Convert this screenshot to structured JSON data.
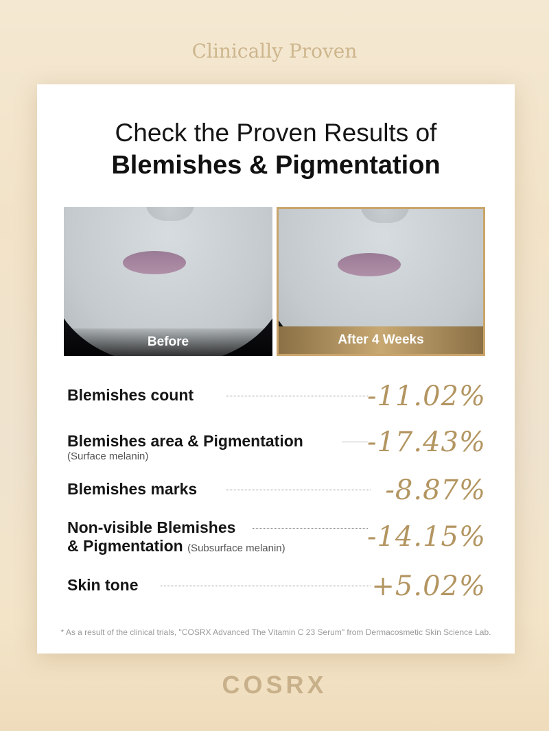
{
  "header": {
    "title": "Clinically Proven"
  },
  "card": {
    "heading_line1": "Check the Proven Results of",
    "heading_line2": "Blemishes & Pigmentation",
    "photos": [
      {
        "label": "Before"
      },
      {
        "label": "After 4 Weeks"
      }
    ],
    "stats": [
      {
        "label": "Blemishes count",
        "sub": "",
        "value": "-11.02%"
      },
      {
        "label": "Blemishes area & Pigmentation",
        "sub": "(Surface melanin)",
        "value": "-17.43%"
      },
      {
        "label": "Blemishes marks",
        "sub": "",
        "value": "-8.87%"
      },
      {
        "label": "Non-visible Blemishes",
        "label2": "& Pigmentation",
        "sub": "(Subsurface melanin)",
        "value": "-14.15%"
      },
      {
        "label": "Skin tone",
        "sub": "",
        "value": "+5.02%"
      }
    ],
    "footnote": "* As a result of the clinical trials, \"COSRX Advanced The Vitamin C 23 Serum\" from  Dermacosmetic Skin Science Lab."
  },
  "brand": {
    "logo": "COSRX"
  },
  "colors": {
    "gold": "#b39561",
    "background": "#f2e3c8"
  }
}
